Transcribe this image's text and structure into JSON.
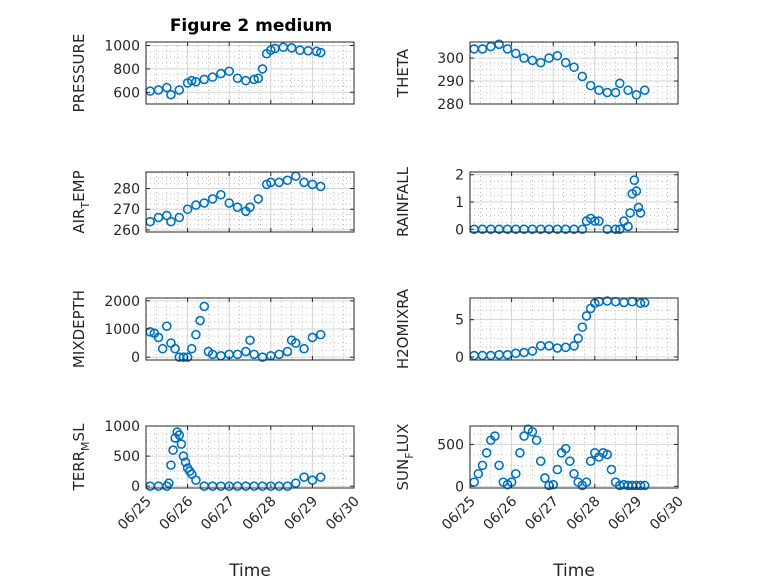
{
  "figure_title": "Figure 2 medium",
  "colors": {
    "marker": "#0072BD",
    "axis": "#262626",
    "grid": "#b0b0b0"
  },
  "chart_data": [
    {
      "type": "scatter",
      "ylabel": "PRESSURE",
      "ylabel_sub": "",
      "xlim": [
        "06/25",
        "06/30"
      ],
      "ylim": [
        500,
        1030
      ],
      "yticks": [
        600,
        800,
        1000
      ],
      "x_days": [
        0.1,
        0.3,
        0.5,
        0.6,
        0.8,
        1.0,
        1.1,
        1.2,
        1.4,
        1.6,
        1.8,
        2.0,
        2.2,
        2.4,
        2.6,
        2.7,
        2.8,
        2.9,
        3.0,
        3.1,
        3.3,
        3.5,
        3.7,
        3.9,
        4.1,
        4.2
      ],
      "y": [
        610,
        620,
        640,
        580,
        620,
        680,
        700,
        690,
        710,
        730,
        760,
        780,
        720,
        700,
        710,
        720,
        800,
        930,
        960,
        975,
        985,
        980,
        960,
        955,
        950,
        940
      ]
    },
    {
      "type": "scatter",
      "ylabel": "THETA",
      "ylabel_sub": "",
      "xlim": [
        "06/25",
        "06/30"
      ],
      "ylim": [
        280,
        307
      ],
      "yticks": [
        280,
        290,
        300
      ],
      "x_days": [
        0.1,
        0.3,
        0.5,
        0.7,
        0.9,
        1.1,
        1.3,
        1.5,
        1.7,
        1.9,
        2.1,
        2.3,
        2.5,
        2.7,
        2.9,
        3.1,
        3.3,
        3.5,
        3.6,
        3.8,
        4.0,
        4.2
      ],
      "y": [
        304,
        304,
        305,
        306,
        304,
        302,
        300,
        299,
        298,
        300,
        301,
        298,
        296,
        292,
        288,
        286,
        285,
        285,
        289,
        286,
        284,
        286
      ]
    },
    {
      "type": "scatter",
      "ylabel": "AIR",
      "ylabel_sub": "T",
      "ylabel_rest": "EMP",
      "xlim": [
        "06/25",
        "06/30"
      ],
      "ylim": [
        259,
        288
      ],
      "yticks": [
        260,
        270,
        280
      ],
      "x_days": [
        0.1,
        0.3,
        0.5,
        0.6,
        0.8,
        1.0,
        1.2,
        1.4,
        1.6,
        1.8,
        2.0,
        2.2,
        2.4,
        2.5,
        2.7,
        2.9,
        3.0,
        3.2,
        3.4,
        3.6,
        3.8,
        4.0,
        4.2
      ],
      "y": [
        264,
        266,
        267,
        264,
        266,
        270,
        272,
        273,
        275,
        277,
        273,
        271,
        269,
        271,
        275,
        282,
        283,
        283,
        284,
        286,
        283,
        282,
        281
      ]
    },
    {
      "type": "scatter",
      "ylabel": "RAINFALL",
      "ylabel_sub": "",
      "xlim": [
        "06/25",
        "06/30"
      ],
      "ylim": [
        -0.1,
        2.1
      ],
      "yticks": [
        0,
        1,
        2
      ],
      "x_days": [
        0.1,
        0.3,
        0.5,
        0.7,
        0.9,
        1.1,
        1.3,
        1.5,
        1.7,
        1.9,
        2.1,
        2.3,
        2.5,
        2.7,
        2.8,
        2.9,
        3.0,
        3.1,
        3.3,
        3.5,
        3.6,
        3.7,
        3.8,
        3.85,
        3.9,
        3.95,
        4.0,
        4.05,
        4.1
      ],
      "y": [
        0,
        0,
        0,
        0,
        0,
        0,
        0,
        0,
        0,
        0,
        0,
        0,
        0,
        0,
        0.3,
        0.4,
        0.3,
        0.3,
        0,
        0,
        0,
        0.3,
        0.1,
        0.6,
        1.3,
        1.8,
        1.4,
        0.8,
        0.6
      ]
    },
    {
      "type": "scatter",
      "ylabel": "MIXDEPTH",
      "ylabel_sub": "",
      "xlim": [
        "06/25",
        "06/30"
      ],
      "ylim": [
        -100,
        2100
      ],
      "yticks": [
        0,
        1000,
        2000
      ],
      "x_days": [
        0.1,
        0.2,
        0.3,
        0.4,
        0.5,
        0.6,
        0.7,
        0.8,
        0.9,
        1.0,
        1.1,
        1.2,
        1.3,
        1.4,
        1.5,
        1.6,
        1.8,
        2.0,
        2.2,
        2.4,
        2.5,
        2.6,
        2.8,
        3.0,
        3.2,
        3.4,
        3.5,
        3.6,
        3.8,
        4.0,
        4.2
      ],
      "y": [
        900,
        850,
        700,
        300,
        1100,
        500,
        300,
        0,
        0,
        0,
        300,
        800,
        1300,
        1800,
        200,
        100,
        50,
        100,
        100,
        200,
        600,
        100,
        0,
        50,
        100,
        200,
        600,
        500,
        300,
        700,
        800
      ]
    },
    {
      "type": "scatter",
      "ylabel": "H2OMIXRA",
      "ylabel_sub": "",
      "xlim": [
        "06/25",
        "06/30"
      ],
      "ylim": [
        -0.4,
        7.9
      ],
      "yticks": [
        0,
        5
      ],
      "x_days": [
        0.1,
        0.3,
        0.5,
        0.7,
        0.9,
        1.1,
        1.3,
        1.5,
        1.7,
        1.9,
        2.1,
        2.3,
        2.5,
        2.6,
        2.7,
        2.8,
        2.9,
        3.0,
        3.1,
        3.3,
        3.5,
        3.7,
        3.9,
        4.1,
        4.2
      ],
      "y": [
        0.2,
        0.2,
        0.2,
        0.3,
        0.3,
        0.5,
        0.6,
        0.8,
        1.5,
        1.5,
        1.2,
        1.3,
        1.5,
        2.5,
        4,
        5.5,
        6.5,
        7.2,
        7.4,
        7.5,
        7.4,
        7.3,
        7.4,
        7.2,
        7.3
      ]
    },
    {
      "type": "scatter",
      "ylabel": "TERR",
      "ylabel_sub": "M",
      "ylabel_rest": "SL",
      "xlim": [
        "06/25",
        "06/30"
      ],
      "ylim": [
        -30,
        1000
      ],
      "yticks": [
        0,
        500,
        1000
      ],
      "x_days": [
        0.1,
        0.3,
        0.5,
        0.55,
        0.6,
        0.65,
        0.7,
        0.75,
        0.8,
        0.85,
        0.9,
        0.95,
        1.0,
        1.05,
        1.1,
        1.2,
        1.4,
        1.6,
        1.8,
        2.0,
        2.2,
        2.4,
        2.6,
        2.8,
        3.0,
        3.2,
        3.4,
        3.6,
        3.8,
        4.0,
        4.2
      ],
      "y": [
        0,
        0,
        0,
        50,
        350,
        600,
        800,
        900,
        850,
        700,
        500,
        400,
        300,
        250,
        200,
        100,
        0,
        0,
        0,
        0,
        0,
        0,
        0,
        0,
        0,
        0,
        0,
        50,
        150,
        100,
        150
      ]
    },
    {
      "type": "scatter",
      "ylabel": "SUN",
      "ylabel_sub": "F",
      "ylabel_rest": "LUX",
      "xlim": [
        "06/25",
        "06/30"
      ],
      "ylim": [
        -20,
        720
      ],
      "yticks": [
        0,
        500
      ],
      "x_days": [
        0.1,
        0.2,
        0.3,
        0.4,
        0.5,
        0.6,
        0.7,
        0.8,
        0.9,
        1.0,
        1.1,
        1.2,
        1.3,
        1.4,
        1.5,
        1.6,
        1.7,
        1.8,
        1.9,
        2.0,
        2.1,
        2.2,
        2.3,
        2.4,
        2.5,
        2.6,
        2.7,
        2.8,
        2.9,
        3.0,
        3.1,
        3.2,
        3.3,
        3.4,
        3.5,
        3.6,
        3.7,
        3.8,
        3.9,
        4.0,
        4.1,
        4.2
      ],
      "y": [
        50,
        150,
        250,
        400,
        550,
        600,
        250,
        50,
        20,
        50,
        150,
        400,
        600,
        680,
        650,
        550,
        300,
        100,
        10,
        20,
        200,
        400,
        450,
        300,
        150,
        50,
        10,
        50,
        300,
        400,
        350,
        400,
        380,
        200,
        50,
        10,
        20,
        10,
        10,
        10,
        10,
        10
      ]
    }
  ],
  "xaxis": {
    "label": "Time",
    "ticks": [
      "06/25",
      "06/26",
      "06/27",
      "06/28",
      "06/29",
      "06/30"
    ]
  }
}
